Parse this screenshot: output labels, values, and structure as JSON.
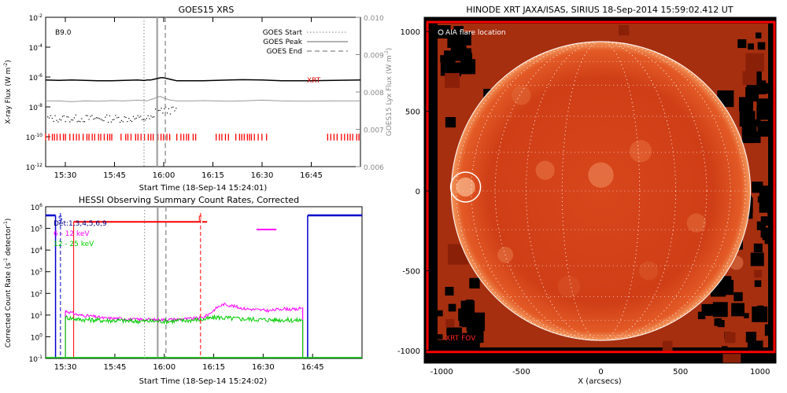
{
  "chart_data": [
    {
      "type": "line",
      "title": "GOES15 XRS",
      "xlabel": "Start Time (18-Sep-14 15:24:01)",
      "ylabel": "X-ray Flux (W m",
      "ylabel_sup": "-2",
      "ylabel_close": ")",
      "y2label": "GOES15 Lyx Flux (W m",
      "y2label_sup": "-2",
      "y2label_close": ")",
      "annotation": "B9.0",
      "xrt_label": "XRT",
      "x_ticks": [
        "15:30",
        "15:45",
        "16:00",
        "16:15",
        "16:30",
        "16:45"
      ],
      "x_tick_minutes": [
        6,
        21,
        36,
        51,
        66,
        81
      ],
      "xlim_minutes": [
        0,
        96
      ],
      "ylim_log": [
        -12,
        -2
      ],
      "y_ticks": [
        {
          "base": "10",
          "exp": "-2"
        },
        {
          "base": "10",
          "exp": "-4"
        },
        {
          "base": "10",
          "exp": "-6"
        },
        {
          "base": "10",
          "exp": "-8"
        },
        {
          "base": "10",
          "exp": "-10"
        },
        {
          "base": "10",
          "exp": "-12"
        }
      ],
      "y2lim": [
        0.006,
        0.01
      ],
      "y2_ticks": [
        "0.010",
        "0.009",
        "0.008",
        "0.007",
        "0.006"
      ],
      "legend": [
        {
          "label": "GOES Start",
          "style": "dotted"
        },
        {
          "label": "GOES Peak",
          "style": "solid"
        },
        {
          "label": "GOES End",
          "style": "dashed"
        }
      ],
      "legend_position": "top-right",
      "event_lines_minutes": {
        "start": 30,
        "peak": 34,
        "end": 36.5
      },
      "series": [
        {
          "name": "long",
          "color": "#000000",
          "log_flux": [
            -6.2,
            -6.22,
            -6.2,
            -6.22,
            -6.25,
            -6.25,
            -6.22,
            -6.2,
            -6.23,
            -6.2,
            -6.2,
            -6.15,
            -6.1,
            -6.05,
            -6.05,
            -6.15,
            -6.25,
            -6.25,
            -6.25,
            -6.22,
            -6.2,
            -6.18,
            -6.2,
            -6.25,
            -6.25,
            -6.22,
            -6.2
          ]
        },
        {
          "name": "short",
          "color": "#999999",
          "log_flux": [
            -7.6,
            -7.6,
            -7.65,
            -7.6,
            -7.62,
            -7.58,
            -7.6,
            -7.55,
            -7.58,
            -7.6,
            -7.5,
            -7.45,
            -7.35,
            -7.3,
            -7.4,
            -7.55,
            -7.6,
            -7.6,
            -7.58,
            -7.6,
            -7.62,
            -7.6,
            -7.55,
            -7.6,
            -7.62,
            -7.6,
            -7.6
          ]
        }
      ],
      "series_minutes": [
        0,
        4,
        8,
        12,
        16,
        20,
        24,
        28,
        30,
        31,
        32,
        33,
        34,
        35,
        36,
        38,
        40,
        44,
        48,
        52,
        56,
        60,
        66,
        72,
        80,
        88,
        96
      ],
      "xrt_coverage_minutes": [
        [
          0,
          21
        ],
        [
          23,
          38
        ],
        [
          40,
          47
        ],
        [
          52,
          56
        ],
        [
          58,
          68
        ],
        [
          86,
          96
        ]
      ]
    },
    {
      "type": "line",
      "title": "HESSI Observing Summary Count Rates, Corrected",
      "xlabel": "Start Time (18-Sep-14 15:24:02)",
      "ylabel": "Corrected Count Rate (s",
      "ylabel_sup": "-1",
      "ylabel_mid": " detector",
      "ylabel_sup2": "-1",
      "ylabel_close": ")",
      "x_ticks": [
        "15:30",
        "15:45",
        "16:00",
        "16:15",
        "16:30",
        "16:45"
      ],
      "x_tick_minutes": [
        6,
        21,
        36,
        51,
        66,
        81
      ],
      "xlim_minutes": [
        0,
        96
      ],
      "ylim_log": [
        -1,
        6
      ],
      "y_ticks": [
        {
          "base": "10",
          "exp": "6"
        },
        {
          "base": "10",
          "exp": "5"
        },
        {
          "base": "10",
          "exp": "4"
        },
        {
          "base": "10",
          "exp": "3"
        },
        {
          "base": "10",
          "exp": "2"
        },
        {
          "base": "10",
          "exp": "1"
        },
        {
          "base": "10",
          "exp": "0"
        },
        {
          "base": "10",
          "exp": "-1"
        }
      ],
      "legend": [
        {
          "label": "Det:1,3,4,5,6,9",
          "color": "#000080"
        },
        {
          "label": "6 - 12 keV",
          "color": "#ff00ff"
        },
        {
          "label": "12 - 25 keV",
          "color": "#00cc00"
        }
      ],
      "legend_position": "top-left",
      "markers": [
        {
          "label": "S",
          "minute": 4.5,
          "color": "#0000cc",
          "style": "dashed"
        },
        {
          "label": "F",
          "minute": 47,
          "color": "#ff0000",
          "style": "dashed"
        }
      ],
      "vertical_lines_minutes": {
        "goes_start": 30,
        "goes_peak": 34,
        "goes_end": 36.5,
        "red_solid": 8.5
      },
      "series": [
        {
          "name": "6 - 12 keV",
          "color": "#ff00ff",
          "minutes": [
            6,
            8,
            10,
            14,
            18,
            22,
            26,
            30,
            34,
            38,
            42,
            46,
            48,
            50,
            52,
            54,
            56,
            60,
            64,
            68,
            72,
            76,
            78
          ],
          "log_values": [
            1.2,
            1.1,
            1.0,
            0.95,
            0.85,
            0.85,
            0.8,
            0.8,
            0.78,
            0.8,
            0.82,
            0.85,
            0.9,
            1.1,
            1.35,
            1.5,
            1.45,
            1.3,
            1.25,
            1.2,
            1.3,
            1.25,
            1.35
          ]
        },
        {
          "name": "12 - 25 keV",
          "color": "#00cc00",
          "minutes": [
            6,
            8,
            10,
            14,
            18,
            22,
            26,
            30,
            34,
            38,
            42,
            46,
            48,
            50,
            52,
            56,
            60,
            64,
            68,
            72,
            76,
            78
          ],
          "log_values": [
            0.9,
            0.85,
            0.8,
            0.78,
            0.75,
            0.75,
            0.72,
            0.72,
            0.72,
            0.72,
            0.75,
            0.78,
            0.8,
            0.85,
            0.9,
            0.85,
            0.82,
            0.8,
            0.78,
            0.78,
            0.75,
            0.78
          ]
        }
      ],
      "attenuator_minutes": [
        [
          8.5,
          47
        ],
        [
          47.5,
          49
        ]
      ],
      "attenuator_log_level": 5.3,
      "magenta_bar_minutes": [
        64,
        70
      ],
      "magenta_bar_log_level": 4.95,
      "blue_level_minutes": [
        [
          0,
          3
        ],
        [
          79.5,
          96
        ]
      ],
      "blue_log_level": 5.6
    },
    {
      "type": "image",
      "title": "HINODE XRT JAXA/ISAS, SIRIUS 18-Sep-2014 15:59:02.412 UT",
      "xlabel": "X (arcsecs)",
      "ylabel": "",
      "x_ticks": [
        "-1000",
        "-500",
        "0",
        "500",
        "1000"
      ],
      "x_tick_values": [
        -1000,
        -500,
        0,
        500,
        1000
      ],
      "y_ticks": [
        "1000",
        "500",
        "0",
        "-500",
        "-1000"
      ],
      "y_tick_values": [
        1000,
        500,
        0,
        -500,
        -1000
      ],
      "xlim": [
        -1110,
        1100
      ],
      "ylim": [
        -1080,
        1090
      ],
      "solar_radius_arcsec": 940,
      "aia_label": "AIA flare location",
      "aia_location": [
        -850,
        25
      ],
      "fov_label": "XRT FOV",
      "colors": {
        "disk": "#d2401a",
        "frame": "#ff0000",
        "limb": "#ffffff"
      }
    }
  ]
}
